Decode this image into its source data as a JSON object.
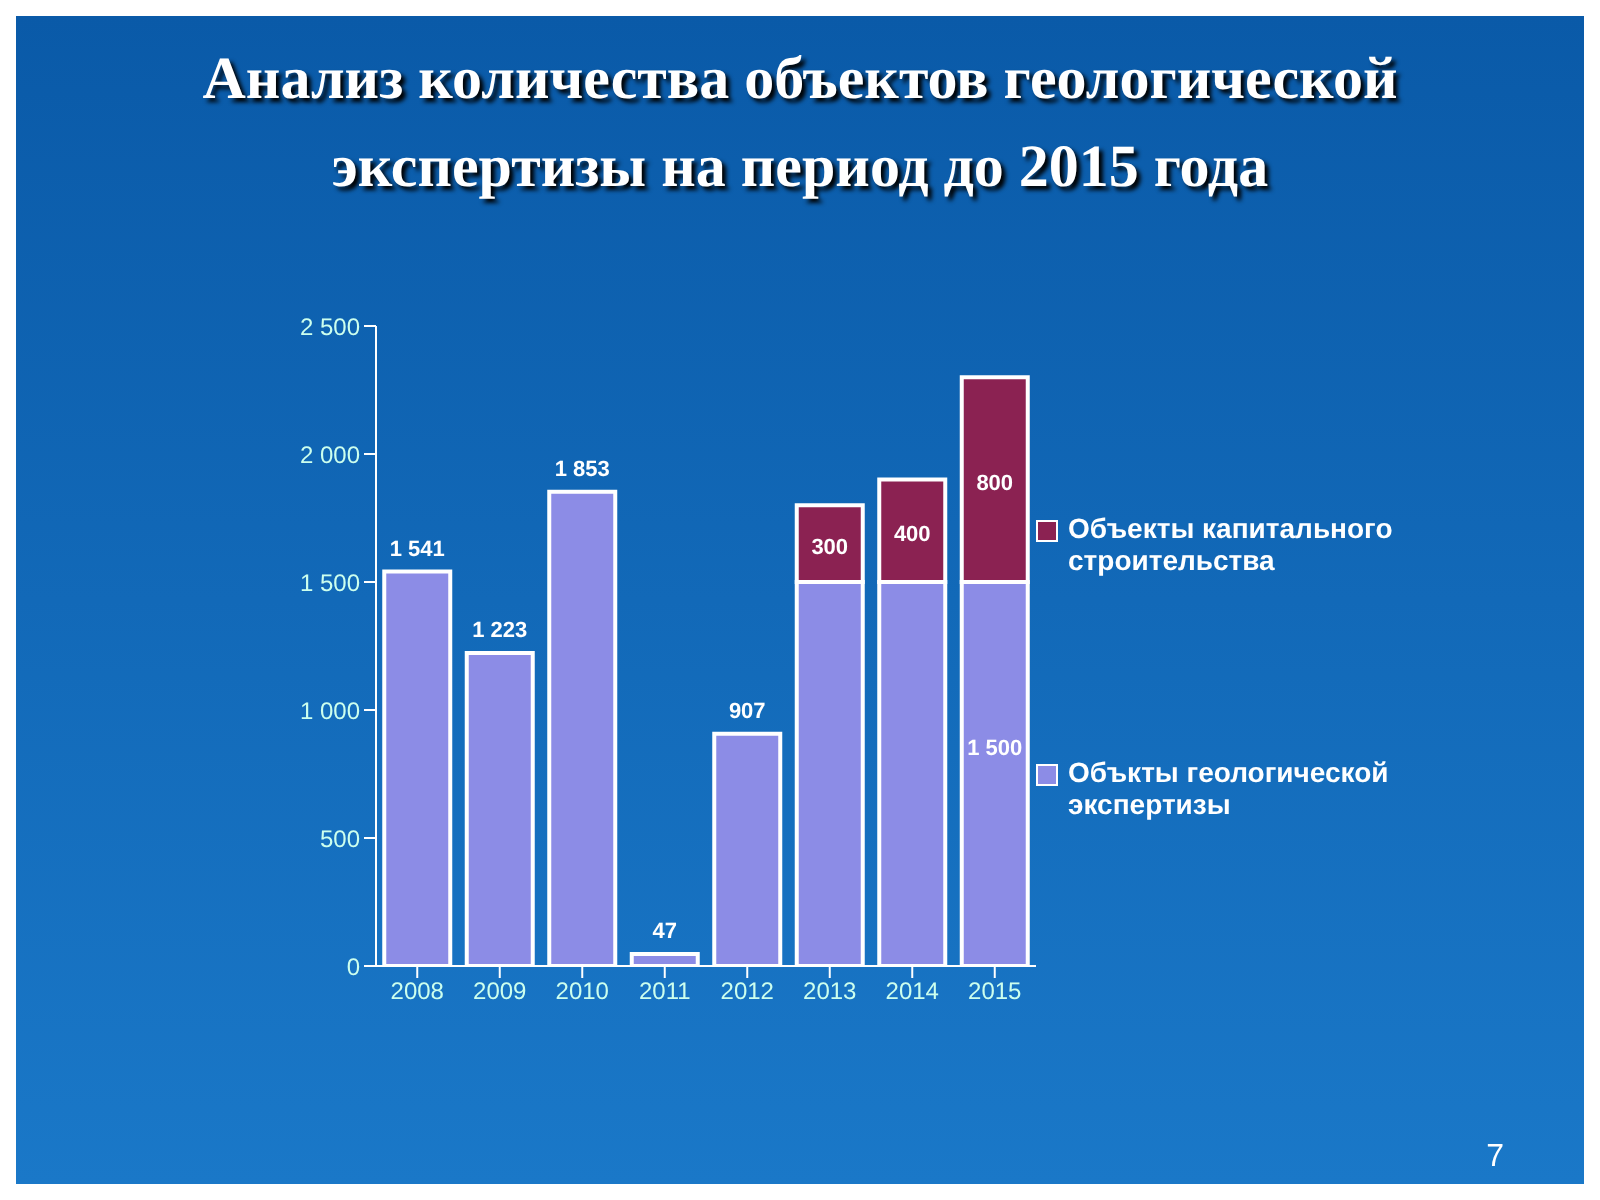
{
  "chart_data": {
    "type": "bar",
    "title": "Анализ количества объектов геологической экспертизы  на период до 2015 года",
    "categories": [
      "2008",
      "2009",
      "2010",
      "2011",
      "2012",
      "2013",
      "2014",
      "2015"
    ],
    "stacked": true,
    "series": [
      {
        "name": "Объкты геологической экспертизы",
        "color": "#8c8ce6",
        "values": [
          1541,
          1223,
          1853,
          47,
          907,
          1500,
          1500,
          1500
        ],
        "value_labels": [
          "1 541",
          "1 223",
          "1 853",
          "47",
          "907",
          null,
          null,
          "1 500"
        ]
      },
      {
        "name": "Объекты капитального строительства",
        "color": "#8b2252",
        "values": [
          null,
          null,
          null,
          null,
          null,
          300,
          400,
          800
        ],
        "value_labels": [
          null,
          null,
          null,
          null,
          null,
          "300",
          "400",
          "800"
        ]
      }
    ],
    "ylim": [
      0,
      2500
    ],
    "yticks": [
      {
        "value": 0,
        "label": "0"
      },
      {
        "value": 500,
        "label": "500"
      },
      {
        "value": 1000,
        "label": "1 000"
      },
      {
        "value": 1500,
        "label": "1 500"
      },
      {
        "value": 2000,
        "label": "2 000"
      },
      {
        "value": 2500,
        "label": "2 500"
      }
    ],
    "grid": false,
    "legend": "right",
    "annotations": [
      "7"
    ]
  }
}
